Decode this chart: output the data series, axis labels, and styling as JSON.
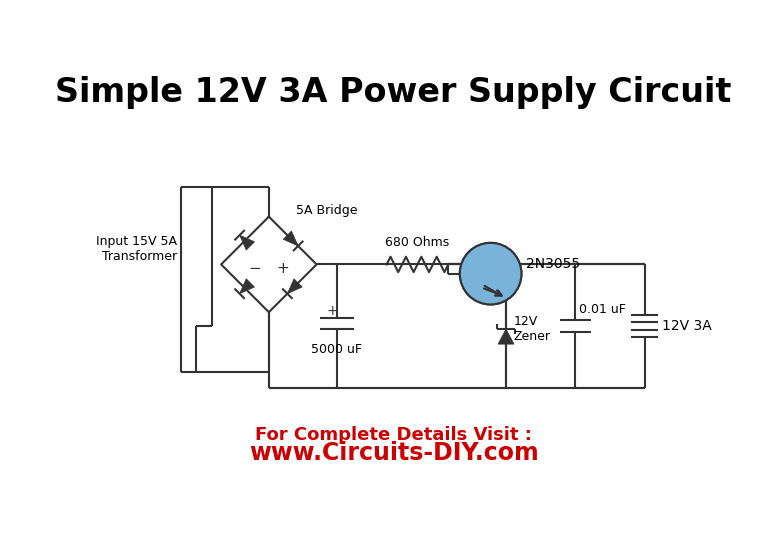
{
  "title": "Simple 12V 3A Power Supply Circuit",
  "title_fontsize": 24,
  "title_fontweight": "bold",
  "footer_line1": "For Complete Details Visit :",
  "footer_line2": "www.Circuits-DIY.com",
  "footer_color": "#cc0000",
  "footer_fontsize1": 13,
  "footer_fontsize2": 17,
  "bg_color": "#ffffff",
  "circuit_color": "#333333",
  "transistor_fill": "#7ab3d9",
  "labels": {
    "bridge": "5A Bridge",
    "transformer": "Input 15V 5A\nTransformer",
    "resistor": "680 Ohms",
    "transistor": "2N3055",
    "capacitor1": "5000 uF",
    "zener": "12V\nZener",
    "capacitor2": "0.01 uF",
    "output": "12V 3A",
    "cap_plus": "+"
  }
}
